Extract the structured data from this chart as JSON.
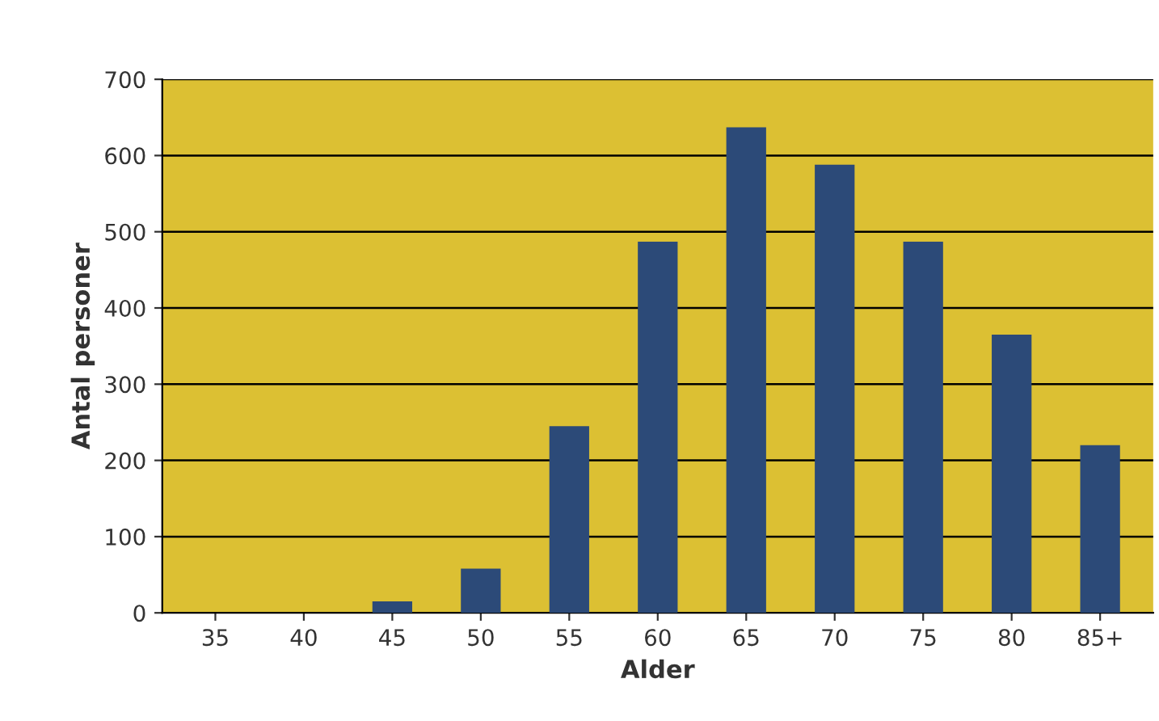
{
  "chart_data": {
    "type": "bar",
    "xlabel": "Alder",
    "ylabel": "Antal personer",
    "categories": [
      "35",
      "40",
      "45",
      "50",
      "55",
      "60",
      "65",
      "70",
      "75",
      "80",
      "85+"
    ],
    "values": [
      0,
      0,
      15,
      58,
      245,
      487,
      637,
      588,
      487,
      365,
      220
    ],
    "color": "#2c4a78",
    "ylim": [
      0,
      700
    ],
    "yticks": [
      0,
      100,
      200,
      300,
      400,
      500,
      600,
      700
    ],
    "grid": "y"
  }
}
